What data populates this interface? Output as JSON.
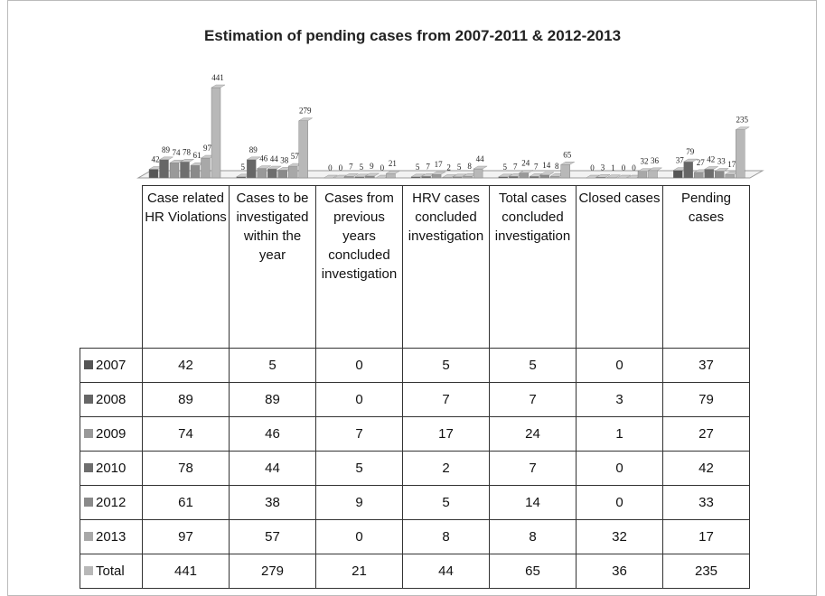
{
  "chart_data": {
    "type": "bar",
    "title": "Estimation of pending cases from 2007-2011 & 2012-2013",
    "categories": [
      "Case related HR Violations",
      "Cases to be investigated within the year",
      "Cases from previous years concluded investigation",
      "HRV cases concluded investigation",
      "Total cases concluded investigation",
      "Closed cases",
      "Pending cases"
    ],
    "series": [
      {
        "name": "2007",
        "color": "#555555",
        "values": [
          42,
          5,
          0,
          5,
          5,
          0,
          37
        ]
      },
      {
        "name": "2008",
        "color": "#666666",
        "values": [
          89,
          89,
          0,
          7,
          7,
          3,
          79
        ]
      },
      {
        "name": "2009",
        "color": "#999999",
        "values": [
          74,
          46,
          7,
          17,
          24,
          1,
          27
        ]
      },
      {
        "name": "2010",
        "color": "#6e6e6e",
        "values": [
          78,
          44,
          5,
          2,
          7,
          0,
          42
        ]
      },
      {
        "name": "2012",
        "color": "#8a8a8a",
        "values": [
          61,
          38,
          9,
          5,
          14,
          0,
          33
        ]
      },
      {
        "name": "2013",
        "color": "#a8a8a8",
        "values": [
          97,
          57,
          0,
          8,
          8,
          32,
          17
        ]
      },
      {
        "name": "Total",
        "color": "#b8b8b8",
        "values": [
          441,
          279,
          21,
          44,
          65,
          36,
          235
        ]
      }
    ]
  }
}
